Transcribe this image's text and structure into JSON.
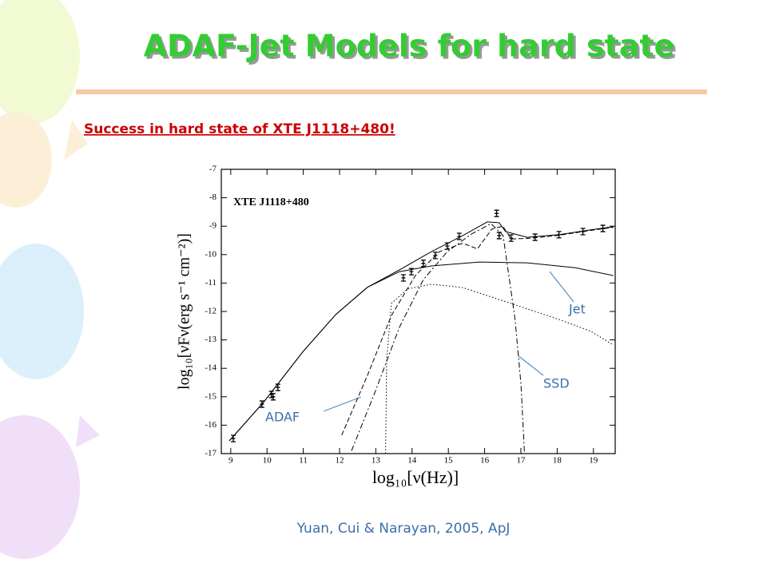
{
  "slide": {
    "title": "ADAF-Jet Models for hard state",
    "subtitle": "Success in hard state of XTE J1118+480!",
    "citation": "Yuan, Cui & Narayan, 2005, ApJ"
  },
  "chart_data": {
    "type": "line",
    "label": "XTE J1118+480",
    "xlabel": "log₁₀[ν(Hz)]",
    "ylabel": "log₁₀[νFν(erg s⁻¹ cm⁻²)]",
    "xlim": [
      8.74,
      19.6
    ],
    "ylim": [
      -17,
      -7
    ],
    "xticks": [
      9,
      10,
      11,
      12,
      13,
      14,
      15,
      16,
      17,
      18,
      19
    ],
    "yticks": [
      -17,
      -16,
      -15,
      -14,
      -13,
      -12,
      -11,
      -10,
      -9,
      -8,
      -7
    ],
    "annotations": [
      "Jet",
      "SSD",
      "ADAF"
    ],
    "series": [
      {
        "style": "solid",
        "color": "#000000",
        "x": [
          8.96,
          9.9,
          11,
          11.9,
          12.77,
          13.65,
          14.53,
          15.4,
          16.07,
          16.4,
          16.58,
          17.17,
          18.05,
          18.93,
          19.55
        ],
        "values": [
          -16.55,
          -15.2,
          -13.4,
          -12.1,
          -11.15,
          -10.54,
          -9.9,
          -9.33,
          -8.85,
          -8.88,
          -9.19,
          -9.39,
          -9.3,
          -9.13,
          -9.02
        ]
      },
      {
        "style": "solid",
        "color": "#000000",
        "x": [
          8.96,
          9.9,
          11,
          11.9,
          12.77,
          13.65,
          14.53,
          15.85,
          17.17,
          18.5,
          19.55
        ],
        "values": [
          -16.55,
          -15.2,
          -13.4,
          -12.1,
          -11.15,
          -10.6,
          -10.4,
          -10.26,
          -10.29,
          -10.46,
          -10.74
        ]
      },
      {
        "style": "dash",
        "color": "#000000",
        "x": [
          12.06,
          12.77,
          13.43,
          14.09,
          14.75,
          15.4,
          15.8,
          16.2,
          16.5,
          16.73,
          17.3,
          18.05,
          18.93,
          19.55
        ],
        "values": [
          -16.35,
          -14.25,
          -12.14,
          -10.74,
          -9.9,
          -9.6,
          -9.8,
          -9.1,
          -9.0,
          -9.45,
          -9.42,
          -9.32,
          -9.15,
          -9.04
        ]
      },
      {
        "style": "dashdot",
        "color": "#000000",
        "x": [
          12.33,
          12.99,
          13.65,
          14.31,
          14.97,
          15.63,
          16.18,
          16.51,
          16.84,
          17.0,
          17.1
        ],
        "values": [
          -16.9,
          -14.8,
          -12.56,
          -10.88,
          -9.9,
          -9.28,
          -8.91,
          -9.33,
          -12.28,
          -14.53,
          -17
        ]
      },
      {
        "style": "dot",
        "color": "#000000",
        "x": [
          13.27,
          13.3,
          13.43,
          13.87,
          14.53,
          15.4,
          16.73,
          18.05,
          18.93,
          19.55
        ],
        "values": [
          -17,
          -13.68,
          -11.72,
          -11.21,
          -11.04,
          -11.16,
          -11.72,
          -12.28,
          -12.7,
          -13.18
        ]
      },
      {
        "style": "points",
        "color": "#000000",
        "x": [
          9.07,
          9.86,
          10.12,
          10.17,
          10.3,
          13.76,
          13.98,
          14.31,
          14.64,
          14.97,
          15.3,
          16.33,
          16.4,
          16.73,
          17.39,
          18.05,
          18.71,
          19.26
        ],
        "values": [
          -16.47,
          -15.26,
          -14.92,
          -15.0,
          -14.67,
          -10.82,
          -10.6,
          -10.31,
          -10.03,
          -9.7,
          -9.36,
          -8.55,
          -9.33,
          -9.42,
          -9.39,
          -9.3,
          -9.19,
          -9.08
        ]
      }
    ]
  }
}
